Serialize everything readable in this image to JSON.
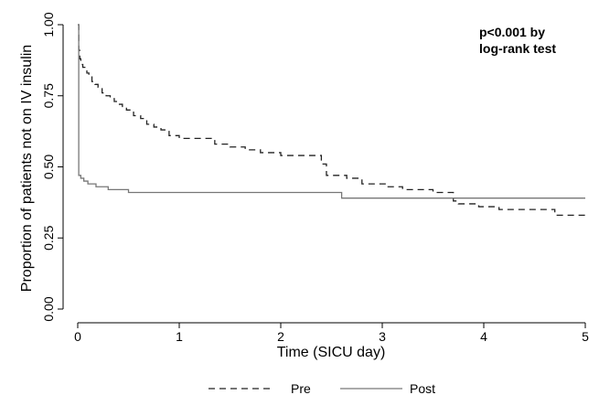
{
  "chart_data": {
    "type": "line",
    "step": true,
    "title": "",
    "xlabel": "Time (SICU day)",
    "ylabel": "Proportion of patients  not on IV insulin",
    "xlim": [
      0,
      5
    ],
    "ylim": [
      0,
      1
    ],
    "xticks": [
      0,
      1,
      2,
      3,
      4,
      5
    ],
    "xtick_labels": [
      "0",
      "1",
      "2",
      "3",
      "4",
      "5"
    ],
    "yticks": [
      0,
      0.25,
      0.5,
      0.75,
      1
    ],
    "ytick_labels": [
      "0.00",
      "0.25",
      "0.50",
      "0.75",
      "1.00"
    ],
    "grid": false,
    "legend_position": "bottom",
    "annotation": [
      "p<0.001 by",
      "log-rank test"
    ],
    "series": [
      {
        "name": "Pre",
        "style": "dashed",
        "color": "#222222",
        "x": [
          0,
          0.01,
          0.02,
          0.03,
          0.05,
          0.07,
          0.09,
          0.11,
          0.14,
          0.17,
          0.2,
          0.24,
          0.28,
          0.32,
          0.36,
          0.4,
          0.44,
          0.48,
          0.55,
          0.62,
          0.68,
          0.75,
          0.82,
          0.9,
          1.0,
          1.2,
          1.35,
          1.5,
          1.65,
          1.8,
          2.0,
          2.2,
          2.4,
          2.45,
          2.65,
          2.8,
          3.05,
          3.2,
          3.5,
          3.7,
          3.75,
          3.95,
          4.15,
          4.7,
          5.0
        ],
        "y": [
          1.0,
          0.91,
          0.88,
          0.86,
          0.85,
          0.84,
          0.83,
          0.82,
          0.8,
          0.79,
          0.78,
          0.76,
          0.75,
          0.74,
          0.73,
          0.72,
          0.71,
          0.7,
          0.68,
          0.67,
          0.65,
          0.64,
          0.63,
          0.61,
          0.6,
          0.6,
          0.58,
          0.57,
          0.56,
          0.55,
          0.54,
          0.54,
          0.51,
          0.47,
          0.46,
          0.44,
          0.43,
          0.42,
          0.41,
          0.38,
          0.37,
          0.36,
          0.35,
          0.33,
          0.33
        ]
      },
      {
        "name": "Post",
        "style": "solid",
        "color": "#777777",
        "x": [
          0,
          0.01,
          0.03,
          0.06,
          0.1,
          0.18,
          0.3,
          0.5,
          1.0,
          2.0,
          2.6,
          3.0,
          4.0,
          5.0
        ],
        "y": [
          1.0,
          0.47,
          0.46,
          0.45,
          0.44,
          0.43,
          0.42,
          0.41,
          0.41,
          0.41,
          0.39,
          0.39,
          0.39,
          0.39
        ]
      }
    ]
  }
}
